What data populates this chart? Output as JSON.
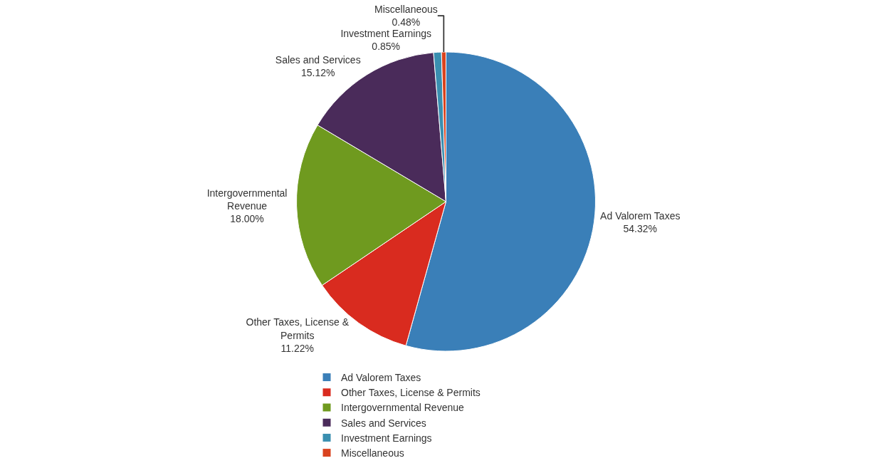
{
  "chart_data": {
    "type": "pie",
    "categories": [
      "Ad Valorem Taxes",
      "Other Taxes, License & Permits",
      "Intergovernmental Revenue",
      "Sales and Services",
      "Investment Earnings",
      "Miscellaneous"
    ],
    "values": [
      54.32,
      11.22,
      18.0,
      15.12,
      0.85,
      0.48
    ],
    "value_labels": [
      "54.32%",
      "11.22%",
      "18.00%",
      "15.12%",
      "0.85%",
      "0.48%"
    ],
    "colors": [
      "#3a7fb8",
      "#d92b1f",
      "#6f9a1f",
      "#4a2b5a",
      "#3a8fb0",
      "#d9431f"
    ],
    "legend": "bottom"
  }
}
